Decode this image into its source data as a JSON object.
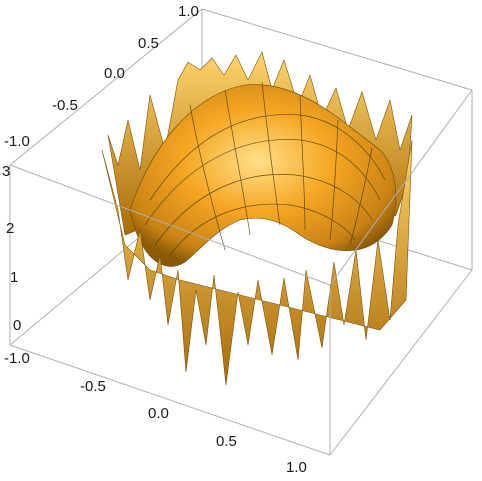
{
  "chart_data": {
    "type": "surface3d",
    "title": "",
    "xlabel": "",
    "ylabel": "",
    "zlabel": "",
    "x_range": [
      -1.0,
      1.0
    ],
    "y_range": [
      -1.0,
      1.0
    ],
    "z_range": [
      -0.2,
      3.0
    ],
    "x_ticks": [
      "-1.0",
      "-0.5",
      "0.0",
      "0.5",
      "1.0"
    ],
    "y_ticks": [
      "-1.0",
      "-0.5",
      "0.0",
      "0.5",
      "1.0"
    ],
    "z_ticks": [
      "0",
      "1",
      "2",
      "3"
    ],
    "surface_color": "#f5a623",
    "surface_highlight": "#ffd56b",
    "surface_shadow": "#a86a08",
    "mesh_color": "#4a3a10",
    "box_color": "#b0b0b0",
    "boxed": true
  }
}
